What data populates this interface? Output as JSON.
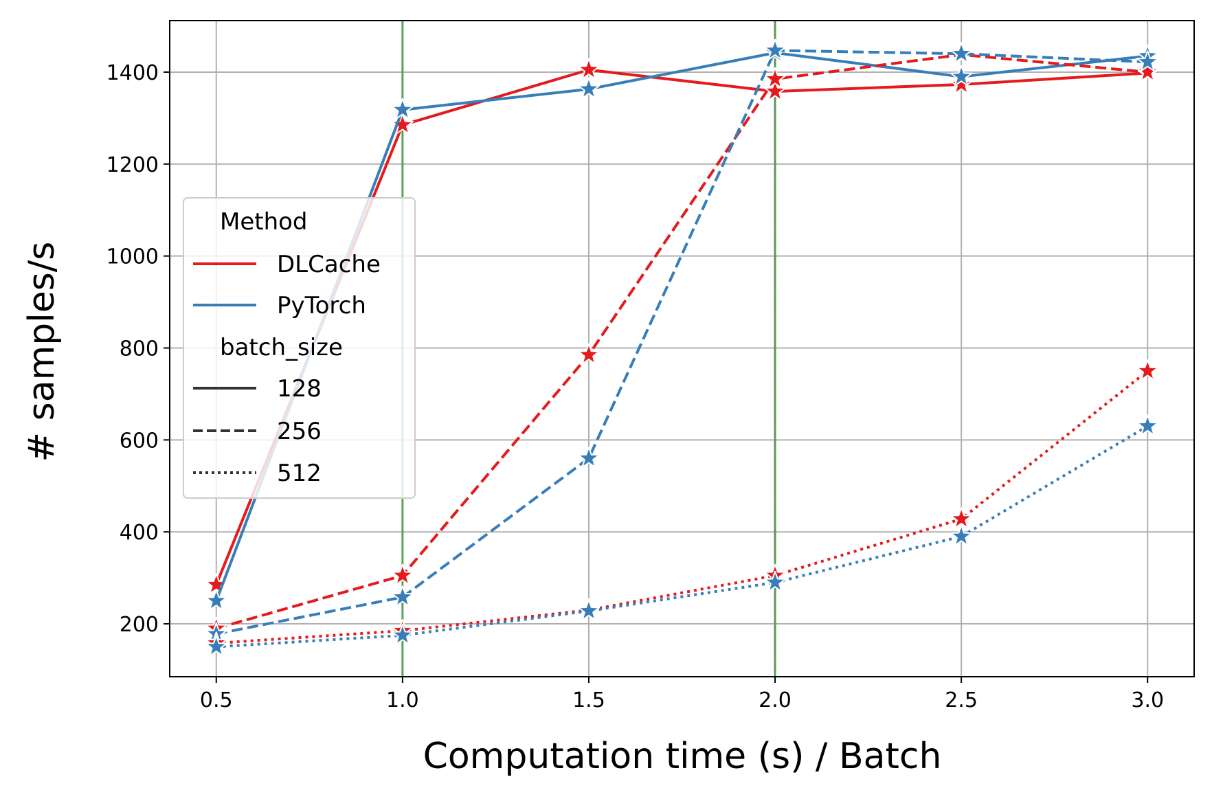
{
  "chart_data": {
    "type": "line",
    "xlabel": "Computation time (s) / Batch",
    "ylabel": "# samples/s",
    "x": [
      0.5,
      1.0,
      1.5,
      2.0,
      2.5,
      3.0
    ],
    "x_ticks": [
      "0.5",
      "1.0",
      "1.5",
      "2.0",
      "2.5",
      "3.0"
    ],
    "y_ticks": [
      "200",
      "400",
      "600",
      "800",
      "1000",
      "1200",
      "1400"
    ],
    "xlim": [
      0.375,
      3.125
    ],
    "ylim": [
      85,
      1512
    ],
    "grid": true,
    "marker": "star",
    "vertical_lines": [
      {
        "x": 1.0,
        "style": "solid",
        "color": "#4a9e4a"
      },
      {
        "x": 2.0,
        "style": "solid",
        "color": "#4a9e4a"
      },
      {
        "x": 2.0,
        "style": "dashed",
        "color": "#6a8f5a"
      }
    ],
    "legend": {
      "position": "center-left",
      "hue_title": "Method",
      "methods": [
        {
          "label": "DLCache",
          "color": "#e41a1c"
        },
        {
          "label": "PyTorch",
          "color": "#377eb8"
        }
      ],
      "style_title": "batch_size",
      "styles": [
        {
          "label": "128",
          "dash": "solid"
        },
        {
          "label": "256",
          "dash": "dashed"
        },
        {
          "label": "512",
          "dash": "dotted"
        }
      ]
    },
    "series": [
      {
        "method": "DLCache",
        "batch_size": "128",
        "color": "#e41a1c",
        "dash": "solid",
        "values": [
          285,
          1285,
          1405,
          1358,
          1373,
          1398
        ]
      },
      {
        "method": "PyTorch",
        "batch_size": "128",
        "color": "#377eb8",
        "dash": "solid",
        "values": [
          250,
          1318,
          1363,
          1442,
          1390,
          1435
        ]
      },
      {
        "method": "DLCache",
        "batch_size": "256",
        "color": "#e41a1c",
        "dash": "dashed",
        "values": [
          190,
          305,
          785,
          1385,
          1438,
          1400
        ]
      },
      {
        "method": "PyTorch",
        "batch_size": "256",
        "color": "#377eb8",
        "dash": "dashed",
        "values": [
          178,
          258,
          560,
          1447,
          1440,
          1422
        ]
      },
      {
        "method": "DLCache",
        "batch_size": "512",
        "color": "#e41a1c",
        "dash": "dotted",
        "values": [
          158,
          185,
          230,
          305,
          428,
          750
        ]
      },
      {
        "method": "PyTorch",
        "batch_size": "512",
        "color": "#377eb8",
        "dash": "dotted",
        "values": [
          150,
          175,
          228,
          290,
          390,
          630
        ]
      }
    ]
  }
}
